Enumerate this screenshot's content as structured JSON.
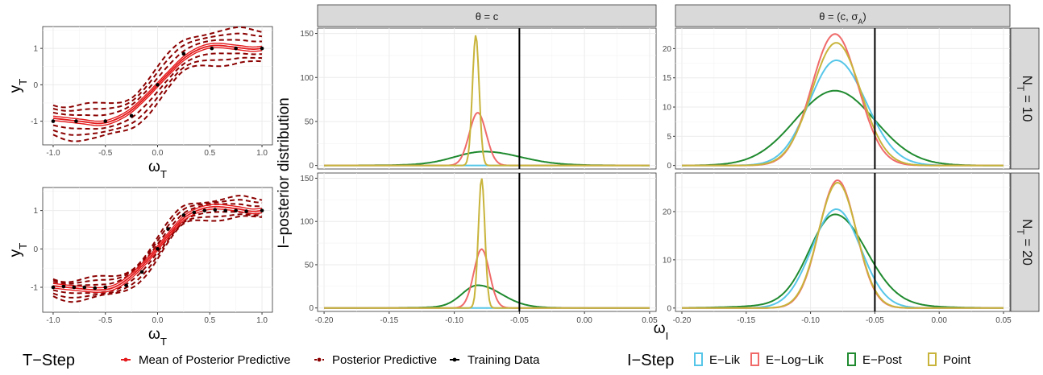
{
  "chart_data": [
    {
      "type": "line",
      "panel": "training-top",
      "xlabel": "ω_T",
      "ylabel": "y_T",
      "xlim": [
        -1.1,
        1.1
      ],
      "ylim": [
        -1.65,
        1.6
      ],
      "xticks": [
        "-1.0",
        "-0.5",
        "0.0",
        "0.5",
        "1.0"
      ],
      "yticks": [
        "-1",
        "0",
        "1"
      ],
      "grid": true,
      "training_points": [
        [
          -1.0,
          -1.0
        ],
        [
          -0.78,
          -1.0
        ],
        [
          -0.5,
          -1.0
        ],
        [
          -0.25,
          -0.85
        ],
        [
          0.0,
          0.0
        ],
        [
          0.25,
          0.85
        ],
        [
          0.52,
          1.0
        ],
        [
          0.75,
          1.0
        ],
        [
          1.0,
          1.0
        ]
      ],
      "mean_curve": [
        [
          -1.0,
          -0.92
        ],
        [
          -0.75,
          -1.0
        ],
        [
          -0.55,
          -1.06
        ],
        [
          -0.4,
          -0.95
        ],
        [
          -0.25,
          -0.7
        ],
        [
          -0.1,
          -0.3
        ],
        [
          0.0,
          0.0
        ],
        [
          0.1,
          0.3
        ],
        [
          0.25,
          0.72
        ],
        [
          0.4,
          0.98
        ],
        [
          0.55,
          1.08
        ],
        [
          0.75,
          1.03
        ],
        [
          0.9,
          0.98
        ],
        [
          1.0,
          1.0
        ]
      ],
      "band_half_widths": [
        0.18,
        0.32,
        0.45
      ]
    },
    {
      "type": "line",
      "panel": "training-bottom",
      "xlabel": "ω_T",
      "ylabel": "y_T",
      "xlim": [
        -1.1,
        1.1
      ],
      "ylim": [
        -1.65,
        1.6
      ],
      "xticks": [
        "-1.0",
        "-0.5",
        "0.0",
        "0.5",
        "1.0"
      ],
      "yticks": [
        "-1",
        "0",
        "1"
      ],
      "grid": true,
      "training_points": [
        [
          -1.0,
          -1.0
        ],
        [
          -0.9,
          -0.98
        ],
        [
          -0.8,
          -1.0
        ],
        [
          -0.7,
          -1.0
        ],
        [
          -0.6,
          -1.02
        ],
        [
          -0.5,
          -1.0
        ],
        [
          -0.3,
          -0.95
        ],
        [
          -0.15,
          -0.6
        ],
        [
          0.0,
          0.0
        ],
        [
          0.1,
          0.52
        ],
        [
          0.25,
          0.88
        ],
        [
          0.35,
          0.95
        ],
        [
          0.45,
          1.0
        ],
        [
          0.55,
          1.02
        ],
        [
          0.65,
          1.0
        ],
        [
          0.75,
          1.0
        ],
        [
          0.85,
          0.98
        ],
        [
          1.0,
          1.0
        ]
      ],
      "mean_curve": [
        [
          -1.0,
          -0.96
        ],
        [
          -0.8,
          -1.02
        ],
        [
          -0.55,
          -1.07
        ],
        [
          -0.4,
          -0.98
        ],
        [
          -0.25,
          -0.7
        ],
        [
          -0.1,
          -0.3
        ],
        [
          0.0,
          0.02
        ],
        [
          0.1,
          0.35
        ],
        [
          0.25,
          0.8
        ],
        [
          0.4,
          1.02
        ],
        [
          0.55,
          1.1
        ],
        [
          0.75,
          1.05
        ],
        [
          0.9,
          0.98
        ],
        [
          1.0,
          1.0
        ]
      ],
      "band_half_widths": [
        0.1,
        0.18,
        0.25
      ]
    }
  ],
  "posterior_panels": {
    "ylabel": "I−posterior distribution",
    "xlabel": "ω_I",
    "xlim": [
      -0.205,
      0.055
    ],
    "xticks": [
      "-0.20",
      "-0.15",
      "-0.10",
      "-0.05",
      "0.00",
      "0.05"
    ],
    "vline_x": -0.05,
    "columns": [
      {
        "strip": "θ = c"
      },
      {
        "strip": "θ = (c, σ_A)"
      }
    ],
    "rows": [
      {
        "strip": "N_T = 10"
      },
      {
        "strip": "N_T = 20"
      }
    ],
    "panels": [
      {
        "col": 0,
        "row": 0,
        "ylim": [
          -4,
          156
        ],
        "yticks": [
          0,
          50,
          100,
          150
        ],
        "series": [
          {
            "name": "E−Lik",
            "mu": -0.082,
            "sigma": 0.007,
            "peak": 0,
            "skew": 0
          },
          {
            "name": "E−Log−Lik",
            "mu": -0.082,
            "sigma": 0.0065,
            "peak": 60,
            "skew": 0
          },
          {
            "name": "E−Post",
            "mu": -0.077,
            "sigma": 0.025,
            "peak": 15,
            "skew": 0.1
          },
          {
            "name": "Point",
            "mu": -0.0835,
            "sigma": 0.0026,
            "peak": 148,
            "skew": 0
          }
        ]
      },
      {
        "col": 1,
        "row": 0,
        "ylim": [
          -0.6,
          23.5
        ],
        "yticks": [
          0,
          5,
          10,
          15,
          20
        ],
        "series": [
          {
            "name": "E−Lik",
            "mu": -0.08,
            "sigma": 0.022,
            "peak": 18,
            "skew": 0.05
          },
          {
            "name": "E−Log−Lik",
            "mu": -0.081,
            "sigma": 0.018,
            "peak": 22.5,
            "skew": 0
          },
          {
            "name": "E−Post",
            "mu": -0.081,
            "sigma": 0.031,
            "peak": 12.8,
            "skew": 0
          },
          {
            "name": "Point",
            "mu": -0.08,
            "sigma": 0.019,
            "peak": 21,
            "skew": 0
          }
        ]
      },
      {
        "col": 0,
        "row": 1,
        "ylim": [
          -4,
          156
        ],
        "yticks": [
          0,
          50,
          100,
          150
        ],
        "series": [
          {
            "name": "E−Lik",
            "mu": -0.079,
            "sigma": 0.007,
            "peak": 0,
            "skew": 0
          },
          {
            "name": "E−Log−Lik",
            "mu": -0.079,
            "sigma": 0.006,
            "peak": 68,
            "skew": 0
          },
          {
            "name": "E−Post",
            "mu": -0.082,
            "sigma": 0.015,
            "peak": 25,
            "skew": 0.2
          },
          {
            "name": "Point",
            "mu": -0.079,
            "sigma": 0.0025,
            "peak": 150,
            "skew": 0
          }
        ]
      },
      {
        "col": 1,
        "row": 1,
        "ylim": [
          -0.7,
          28
        ],
        "yticks": [
          0,
          10,
          20
        ],
        "series": [
          {
            "name": "E−Lik",
            "mu": -0.08,
            "sigma": 0.019,
            "peak": 20.5,
            "skew": 0
          },
          {
            "name": "E−Log−Lik",
            "mu": -0.079,
            "sigma": 0.0145,
            "peak": 26.5,
            "skew": 0
          },
          {
            "name": "E−Post",
            "mu": -0.081,
            "sigma": 0.022,
            "peak": 18.5,
            "skew": 0.1
          },
          {
            "name": "Point",
            "mu": -0.079,
            "sigma": 0.0148,
            "peak": 26,
            "skew": 0
          }
        ]
      }
    ]
  },
  "legend": {
    "t_step_title": "T−Step",
    "t_step_items": [
      {
        "label": "Mean of Posterior Predictive",
        "color": "#e41a1c"
      },
      {
        "label": "Posterior Predictive",
        "color": "#8b0000"
      },
      {
        "label": "Training Data",
        "color": "#000000"
      }
    ],
    "i_step_title": "I−Step",
    "i_step_items": [
      {
        "label": "E−Lik",
        "color": "#56c6e8"
      },
      {
        "label": "E−Log−Lik",
        "color": "#f06a6a"
      },
      {
        "label": "E−Post",
        "color": "#1f8a2f"
      },
      {
        "label": "Point",
        "color": "#c8b43b"
      }
    ]
  },
  "colors": {
    "E−Lik": "#56c6e8",
    "E−Log−Lik": "#f06a6a",
    "E−Post": "#1f8a2f",
    "Point": "#c8b43b",
    "mean": "#e41a1c",
    "predictive": "#8b0000",
    "grid": "#ebebeb",
    "strip": "#d9d9d9"
  }
}
